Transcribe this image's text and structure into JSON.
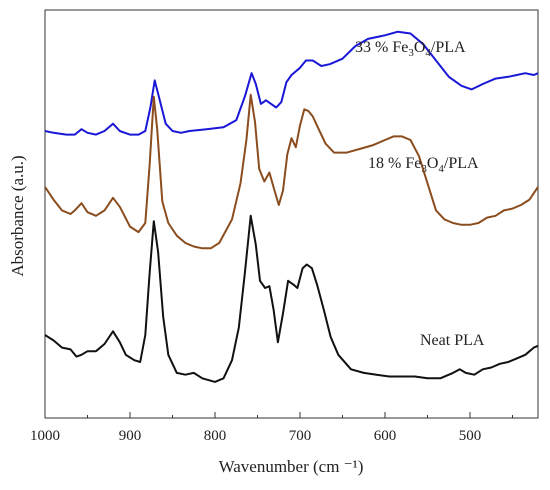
{
  "chart_data": {
    "type": "line",
    "xlabel": "Wavenumber (cm ⁻¹)",
    "ylabel": "Absorbance (a.u.)",
    "xlim": [
      1000,
      420
    ],
    "x_reversed": true,
    "x_ticks": [
      1000,
      900,
      800,
      700,
      600,
      500
    ],
    "y_ticks_shown": false,
    "grid": false,
    "series": [
      {
        "name": "33 % Fe3O4/PLA",
        "label_parts": [
          "33 % Fe",
          "3",
          "O",
          "4",
          "/PLA"
        ],
        "color": "#1a17d6",
        "points": [
          [
            1000,
            7.95
          ],
          [
            990,
            7.9
          ],
          [
            975,
            7.85
          ],
          [
            965,
            7.85
          ],
          [
            957,
            8.0
          ],
          [
            950,
            7.9
          ],
          [
            940,
            7.85
          ],
          [
            930,
            7.95
          ],
          [
            920,
            8.15
          ],
          [
            912,
            7.95
          ],
          [
            900,
            7.85
          ],
          [
            890,
            7.85
          ],
          [
            882,
            7.95
          ],
          [
            876,
            8.6
          ],
          [
            871,
            9.35
          ],
          [
            866,
            8.9
          ],
          [
            858,
            8.15
          ],
          [
            850,
            7.95
          ],
          [
            840,
            7.9
          ],
          [
            830,
            7.95
          ],
          [
            810,
            8.0
          ],
          [
            790,
            8.05
          ],
          [
            775,
            8.25
          ],
          [
            765,
            8.9
          ],
          [
            757,
            9.55
          ],
          [
            752,
            9.25
          ],
          [
            746,
            8.7
          ],
          [
            740,
            8.8
          ],
          [
            734,
            8.7
          ],
          [
            728,
            8.6
          ],
          [
            722,
            8.75
          ],
          [
            716,
            9.3
          ],
          [
            710,
            9.5
          ],
          [
            700,
            9.7
          ],
          [
            693,
            9.9
          ],
          [
            685,
            9.9
          ],
          [
            675,
            9.75
          ],
          [
            665,
            9.8
          ],
          [
            650,
            9.95
          ],
          [
            635,
            10.3
          ],
          [
            620,
            10.5
          ],
          [
            600,
            10.6
          ],
          [
            585,
            10.7
          ],
          [
            570,
            10.65
          ],
          [
            555,
            10.35
          ],
          [
            540,
            9.9
          ],
          [
            525,
            9.45
          ],
          [
            510,
            9.2
          ],
          [
            498,
            9.1
          ],
          [
            485,
            9.25
          ],
          [
            470,
            9.4
          ],
          [
            455,
            9.45
          ],
          [
            445,
            9.5
          ],
          [
            435,
            9.55
          ],
          [
            425,
            9.5
          ],
          [
            420,
            9.55
          ]
        ]
      },
      {
        "name": "18 % Fe3O4/PLA",
        "label_parts": [
          "18 % Fe",
          "3",
          "O",
          "4",
          "/PLA"
        ],
        "color": "#8b4d1e",
        "points": [
          [
            1000,
            6.4
          ],
          [
            990,
            6.05
          ],
          [
            980,
            5.75
          ],
          [
            970,
            5.65
          ],
          [
            965,
            5.75
          ],
          [
            957,
            5.95
          ],
          [
            950,
            5.7
          ],
          [
            940,
            5.6
          ],
          [
            930,
            5.75
          ],
          [
            920,
            6.1
          ],
          [
            912,
            5.85
          ],
          [
            900,
            5.3
          ],
          [
            890,
            5.15
          ],
          [
            882,
            5.4
          ],
          [
            877,
            7.0
          ],
          [
            872,
            8.9
          ],
          [
            868,
            8.0
          ],
          [
            862,
            6.0
          ],
          [
            855,
            5.4
          ],
          [
            845,
            5.05
          ],
          [
            835,
            4.85
          ],
          [
            825,
            4.75
          ],
          [
            815,
            4.7
          ],
          [
            805,
            4.7
          ],
          [
            795,
            4.85
          ],
          [
            780,
            5.5
          ],
          [
            770,
            6.5
          ],
          [
            763,
            7.7
          ],
          [
            758,
            8.95
          ],
          [
            753,
            8.2
          ],
          [
            748,
            6.9
          ],
          [
            742,
            6.55
          ],
          [
            736,
            6.8
          ],
          [
            730,
            6.3
          ],
          [
            725,
            5.9
          ],
          [
            720,
            6.3
          ],
          [
            715,
            7.3
          ],
          [
            710,
            7.75
          ],
          [
            705,
            7.5
          ],
          [
            700,
            8.1
          ],
          [
            695,
            8.55
          ],
          [
            690,
            8.5
          ],
          [
            685,
            8.35
          ],
          [
            678,
            8.0
          ],
          [
            670,
            7.6
          ],
          [
            660,
            7.35
          ],
          [
            645,
            7.35
          ],
          [
            630,
            7.45
          ],
          [
            615,
            7.55
          ],
          [
            600,
            7.7
          ],
          [
            590,
            7.8
          ],
          [
            580,
            7.8
          ],
          [
            570,
            7.7
          ],
          [
            560,
            7.25
          ],
          [
            550,
            6.5
          ],
          [
            540,
            5.75
          ],
          [
            530,
            5.5
          ],
          [
            520,
            5.4
          ],
          [
            510,
            5.35
          ],
          [
            500,
            5.35
          ],
          [
            490,
            5.4
          ],
          [
            480,
            5.55
          ],
          [
            470,
            5.6
          ],
          [
            460,
            5.75
          ],
          [
            450,
            5.8
          ],
          [
            440,
            5.9
          ],
          [
            430,
            6.05
          ],
          [
            420,
            6.4
          ]
        ]
      },
      {
        "name": "Neat PLA",
        "label_parts": [
          "Neat PLA"
        ],
        "color": "#111111",
        "points": [
          [
            1000,
            2.3
          ],
          [
            990,
            2.15
          ],
          [
            980,
            1.95
          ],
          [
            970,
            1.9
          ],
          [
            963,
            1.7
          ],
          [
            957,
            1.75
          ],
          [
            950,
            1.85
          ],
          [
            940,
            1.85
          ],
          [
            930,
            2.05
          ],
          [
            920,
            2.4
          ],
          [
            912,
            2.1
          ],
          [
            905,
            1.75
          ],
          [
            895,
            1.6
          ],
          [
            888,
            1.55
          ],
          [
            882,
            2.3
          ],
          [
            877,
            4.0
          ],
          [
            872,
            5.45
          ],
          [
            867,
            4.6
          ],
          [
            861,
            2.8
          ],
          [
            855,
            1.75
          ],
          [
            845,
            1.25
          ],
          [
            835,
            1.2
          ],
          [
            825,
            1.25
          ],
          [
            815,
            1.1
          ],
          [
            800,
            1.0
          ],
          [
            790,
            1.1
          ],
          [
            780,
            1.6
          ],
          [
            772,
            2.5
          ],
          [
            765,
            4.0
          ],
          [
            758,
            5.6
          ],
          [
            752,
            4.8
          ],
          [
            747,
            3.8
          ],
          [
            741,
            3.6
          ],
          [
            736,
            3.65
          ],
          [
            731,
            3.0
          ],
          [
            726,
            2.1
          ],
          [
            720,
            2.9
          ],
          [
            714,
            3.8
          ],
          [
            708,
            3.7
          ],
          [
            703,
            3.6
          ],
          [
            697,
            4.15
          ],
          [
            692,
            4.25
          ],
          [
            686,
            4.15
          ],
          [
            680,
            3.7
          ],
          [
            672,
            3.0
          ],
          [
            664,
            2.25
          ],
          [
            655,
            1.75
          ],
          [
            640,
            1.35
          ],
          [
            625,
            1.25
          ],
          [
            610,
            1.2
          ],
          [
            595,
            1.15
          ],
          [
            580,
            1.15
          ],
          [
            565,
            1.15
          ],
          [
            550,
            1.1
          ],
          [
            535,
            1.1
          ],
          [
            520,
            1.25
          ],
          [
            512,
            1.35
          ],
          [
            505,
            1.25
          ],
          [
            495,
            1.2
          ],
          [
            485,
            1.35
          ],
          [
            475,
            1.4
          ],
          [
            465,
            1.5
          ],
          [
            455,
            1.55
          ],
          [
            445,
            1.65
          ],
          [
            435,
            1.75
          ],
          [
            425,
            1.95
          ],
          [
            420,
            2.0
          ]
        ]
      }
    ]
  }
}
